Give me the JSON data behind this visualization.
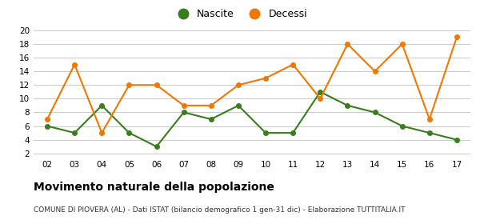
{
  "years": [
    2,
    3,
    4,
    5,
    6,
    7,
    8,
    9,
    10,
    11,
    12,
    13,
    14,
    15,
    16,
    17
  ],
  "nascite": [
    6,
    5,
    9,
    5,
    3,
    8,
    7,
    9,
    5,
    5,
    11,
    9,
    8,
    6,
    5,
    4
  ],
  "decessi": [
    7,
    15,
    5,
    12,
    12,
    9,
    9,
    12,
    13,
    15,
    10,
    18,
    14,
    18,
    7,
    19
  ],
  "nascite_color": "#3a7d1e",
  "decessi_color": "#f07800",
  "title": "Movimento naturale della popolazione",
  "subtitle": "COMUNE DI PIOVERA (AL) - Dati ISTAT (bilancio demografico 1 gen-31 dic) - Elaborazione TUTTITALIA.IT",
  "yticks": [
    2,
    4,
    6,
    8,
    10,
    12,
    14,
    16,
    18,
    20
  ],
  "legend_nascite": "Nascite",
  "legend_decessi": "Decessi",
  "bg_color": "#ffffff",
  "grid_color": "#cccccc"
}
